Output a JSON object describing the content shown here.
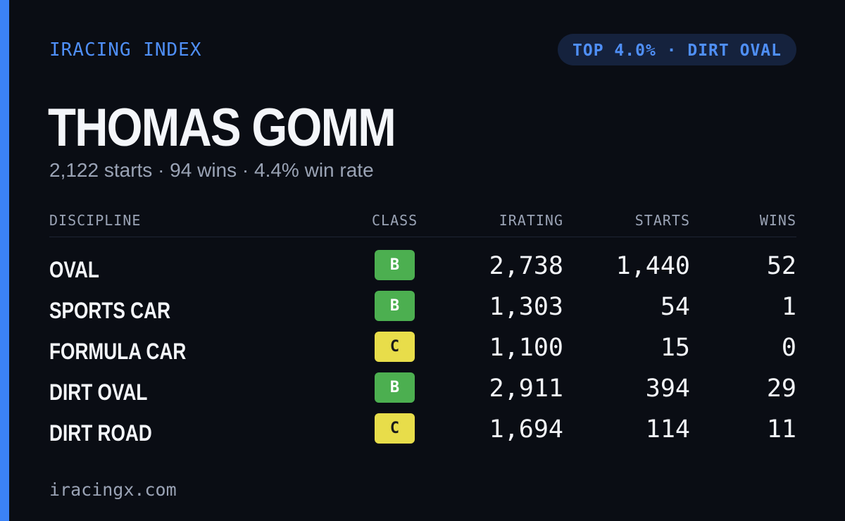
{
  "brand": "IRACING INDEX",
  "rank_badge": "TOP 4.0% · DIRT OVAL",
  "driver": {
    "name": "THOMAS GOMM",
    "summary": "2,122 starts · 94 wins · 4.4% win rate"
  },
  "table": {
    "headers": {
      "discipline": "DISCIPLINE",
      "class": "CLASS",
      "irating": "IRATING",
      "starts": "STARTS",
      "wins": "WINS"
    },
    "rows": [
      {
        "discipline": "OVAL",
        "class": "B",
        "irating": "2,738",
        "starts": "1,440",
        "wins": "52"
      },
      {
        "discipline": "SPORTS CAR",
        "class": "B",
        "irating": "1,303",
        "starts": "54",
        "wins": "1"
      },
      {
        "discipline": "FORMULA CAR",
        "class": "C",
        "irating": "1,100",
        "starts": "15",
        "wins": "0"
      },
      {
        "discipline": "DIRT OVAL",
        "class": "B",
        "irating": "2,911",
        "starts": "394",
        "wins": "29"
      },
      {
        "discipline": "DIRT ROAD",
        "class": "C",
        "irating": "1,694",
        "starts": "114",
        "wins": "11"
      }
    ]
  },
  "class_colors": {
    "B": "#4caf50",
    "C": "#e8dd4a"
  },
  "accent_color": "#3b82f6",
  "footer": "iracingx.com"
}
